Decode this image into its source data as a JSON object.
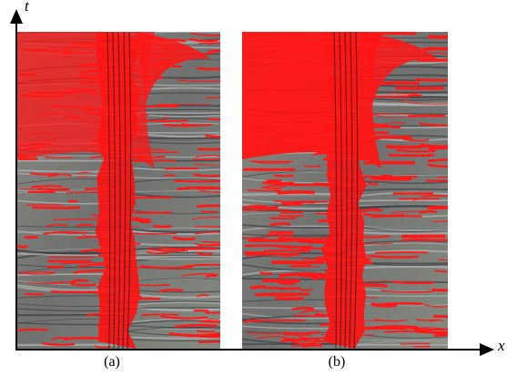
{
  "axes": {
    "vertical_label": "t",
    "horizontal_label": "x"
  },
  "panels": [
    {
      "caption": "(a)"
    },
    {
      "caption": "(b)"
    }
  ]
}
